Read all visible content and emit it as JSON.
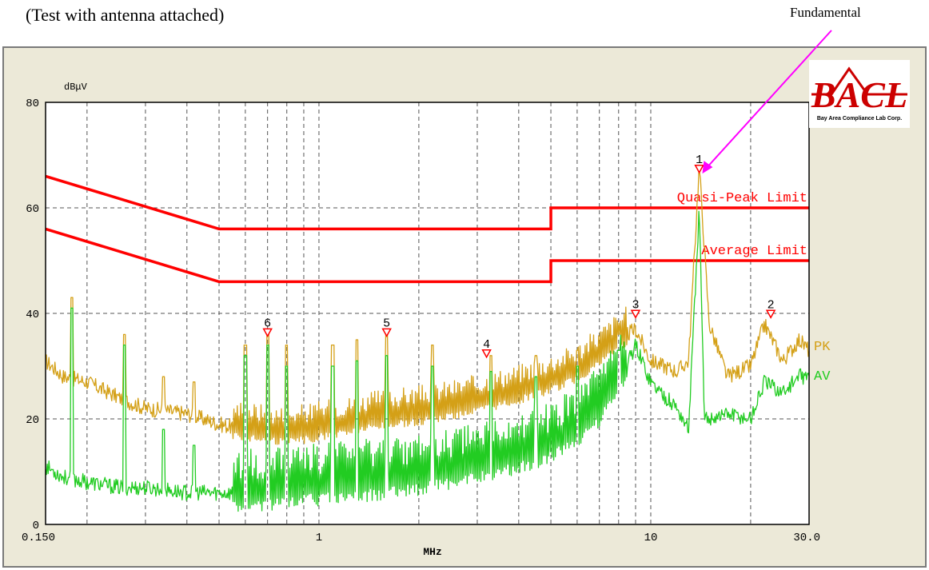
{
  "caption": "(Test with antenna attached)",
  "annotation": {
    "text": "Fundamental",
    "color": "#ff00ff"
  },
  "logo": {
    "text": "BACL",
    "subtext": "Bay Area Compliance Lab Corp.",
    "color": "#cc0000"
  },
  "colors": {
    "pk": "#d4a017",
    "av": "#22cc22",
    "limit": "#ff0000",
    "marker": "#ff0000",
    "grid": "#555555",
    "plot_bg": "#ffffff"
  },
  "chart_data": {
    "type": "line",
    "title": "",
    "xlabel": "MHz",
    "ylabel": "dBμV",
    "x_scale": "log",
    "xlim": [
      0.15,
      30
    ],
    "ylim": [
      0,
      80
    ],
    "grid": true,
    "x_tick_labels": [
      {
        "value": 0.15,
        "label": "0.150"
      },
      {
        "value": 1,
        "label": "1"
      },
      {
        "value": 10,
        "label": "10"
      },
      {
        "value": 30,
        "label": "30.0"
      }
    ],
    "x_minor_ticks": [
      0.2,
      0.3,
      0.4,
      0.5,
      0.6,
      0.7,
      0.8,
      0.9,
      2,
      3,
      4,
      5,
      6,
      7,
      8,
      9,
      20
    ],
    "y_ticks": [
      0,
      20,
      40,
      60,
      80
    ],
    "limits": [
      {
        "label": "Quasi-Peak Limit",
        "points": [
          [
            0.15,
            66
          ],
          [
            0.5,
            56
          ],
          [
            5,
            56
          ],
          [
            5,
            60
          ],
          [
            30,
            60
          ]
        ]
      },
      {
        "label": "Average Limit",
        "points": [
          [
            0.15,
            56
          ],
          [
            0.5,
            46
          ],
          [
            5,
            46
          ],
          [
            5,
            50
          ],
          [
            30,
            50
          ]
        ]
      }
    ],
    "series": [
      {
        "name": "PK",
        "baseline": [
          [
            0.15,
            31
          ],
          [
            0.17,
            28
          ],
          [
            0.2,
            27
          ],
          [
            0.25,
            24
          ],
          [
            0.3,
            22
          ],
          [
            0.4,
            21
          ],
          [
            0.5,
            19
          ],
          [
            0.6,
            18
          ],
          [
            0.8,
            17
          ],
          [
            1,
            18
          ],
          [
            1.5,
            20
          ],
          [
            2,
            21
          ],
          [
            3,
            23
          ],
          [
            4,
            25
          ],
          [
            5,
            27
          ],
          [
            6,
            29
          ],
          [
            7,
            32
          ],
          [
            8,
            35
          ],
          [
            9,
            37
          ],
          [
            10,
            31
          ],
          [
            12,
            29
          ],
          [
            13,
            31
          ],
          [
            14,
            68
          ],
          [
            15,
            38
          ],
          [
            17,
            28
          ],
          [
            20,
            30
          ],
          [
            22,
            38
          ],
          [
            25,
            31
          ],
          [
            28,
            35
          ],
          [
            30,
            33
          ]
        ],
        "peaks": [
          [
            0.18,
            43
          ],
          [
            0.26,
            36
          ],
          [
            0.34,
            28
          ],
          [
            0.42,
            27
          ],
          [
            0.6,
            34
          ],
          [
            0.7,
            37
          ],
          [
            0.8,
            34
          ],
          [
            1.1,
            34
          ],
          [
            1.3,
            35
          ],
          [
            1.6,
            36
          ],
          [
            2.2,
            34
          ],
          [
            3.3,
            32
          ],
          [
            4.5,
            32
          ],
          [
            6,
            33
          ],
          [
            8,
            36
          ]
        ]
      },
      {
        "name": "AV",
        "baseline": [
          [
            0.15,
            11
          ],
          [
            0.17,
            9
          ],
          [
            0.2,
            8
          ],
          [
            0.25,
            7
          ],
          [
            0.3,
            7
          ],
          [
            0.4,
            6
          ],
          [
            0.5,
            6
          ],
          [
            0.7,
            6
          ],
          [
            0.9,
            7
          ],
          [
            1,
            7
          ],
          [
            1.5,
            8
          ],
          [
            2,
            9
          ],
          [
            3,
            11
          ],
          [
            4,
            13
          ],
          [
            5,
            15
          ],
          [
            6,
            18
          ],
          [
            7,
            22
          ],
          [
            8,
            27
          ],
          [
            9,
            34
          ],
          [
            10,
            27
          ],
          [
            12,
            22
          ],
          [
            13,
            18
          ],
          [
            14,
            60
          ],
          [
            14.5,
            20
          ],
          [
            17,
            21
          ],
          [
            20,
            20
          ],
          [
            22,
            27
          ],
          [
            25,
            25
          ],
          [
            28,
            28
          ],
          [
            30,
            28
          ]
        ],
        "peaks": [
          [
            0.18,
            41
          ],
          [
            0.26,
            34
          ],
          [
            0.34,
            18
          ],
          [
            0.42,
            15
          ],
          [
            0.6,
            32
          ],
          [
            0.7,
            34
          ],
          [
            0.8,
            30
          ],
          [
            1.1,
            30
          ],
          [
            1.3,
            31
          ],
          [
            1.6,
            32
          ],
          [
            2.2,
            30
          ],
          [
            3.3,
            29
          ],
          [
            4.5,
            28
          ],
          [
            6,
            30
          ],
          [
            8,
            33
          ]
        ]
      }
    ],
    "markers": [
      {
        "label": "1",
        "x": 14.0,
        "y": 67
      },
      {
        "label": "2",
        "x": 23.0,
        "y": 39.5
      },
      {
        "label": "3",
        "x": 9.0,
        "y": 39.5
      },
      {
        "label": "4",
        "x": 3.2,
        "y": 32
      },
      {
        "label": "5",
        "x": 1.6,
        "y": 36
      },
      {
        "label": "6",
        "x": 0.7,
        "y": 36
      }
    ]
  }
}
